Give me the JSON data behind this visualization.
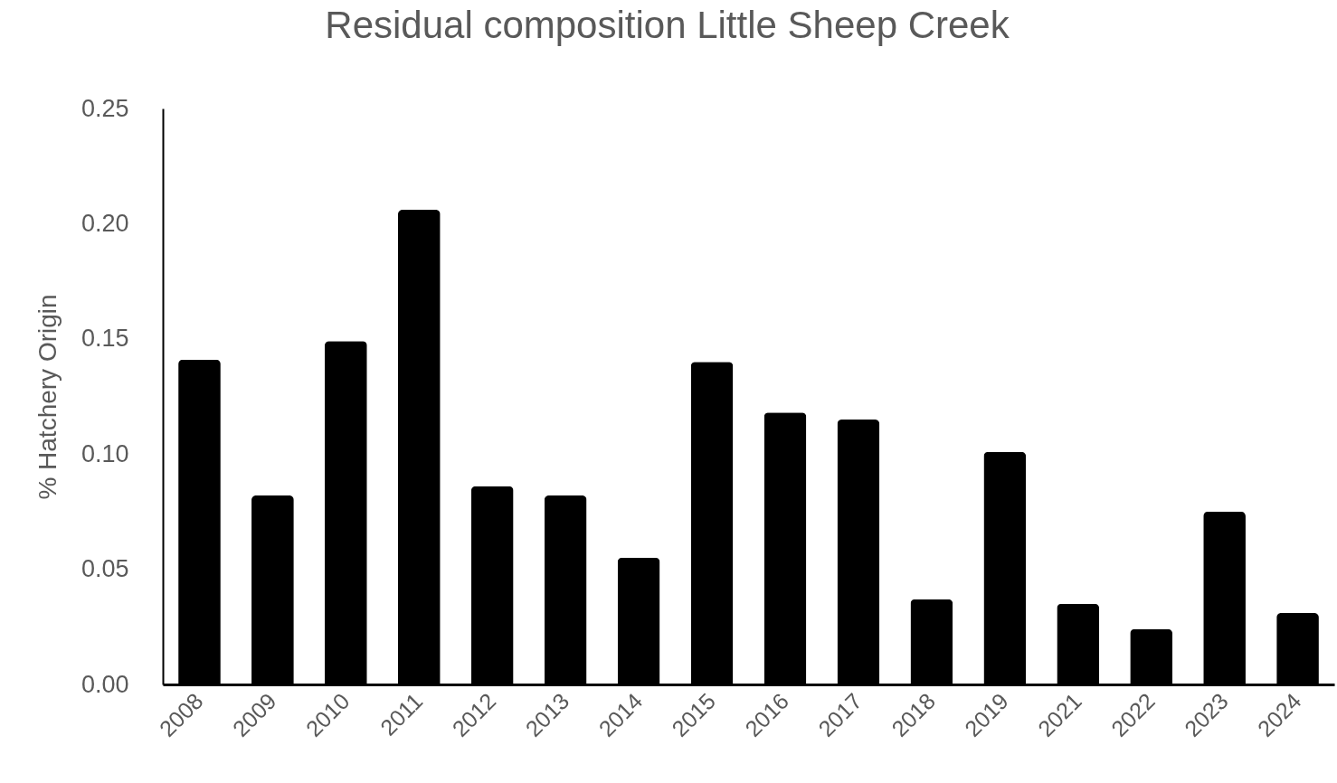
{
  "chart_data": {
    "type": "bar",
    "title": "Residual composition Little Sheep Creek",
    "ylabel": "% Hatchery Origin",
    "categories": [
      "2008",
      "2009",
      "2010",
      "2011",
      "2012",
      "2013",
      "2014",
      "2015",
      "2016",
      "2017",
      "2018",
      "2019",
      "2021",
      "2022",
      "2023",
      "2024"
    ],
    "values": [
      0.141,
      0.082,
      0.149,
      0.206,
      0.086,
      0.082,
      0.055,
      0.14,
      0.118,
      0.115,
      0.037,
      0.101,
      0.035,
      0.024,
      0.075,
      0.031
    ],
    "color": "#000000",
    "ylim": [
      0,
      0.25
    ],
    "yticks": [
      {
        "value": 0,
        "label": "0.00"
      },
      {
        "value": 0.05,
        "label": "0.05"
      },
      {
        "value": 0.1,
        "label": "0.10"
      },
      {
        "value": 0.15,
        "label": "0.15"
      },
      {
        "value": 0.2,
        "label": "0.20"
      },
      {
        "value": 0.25,
        "label": "0.25"
      }
    ],
    "grid": false
  }
}
